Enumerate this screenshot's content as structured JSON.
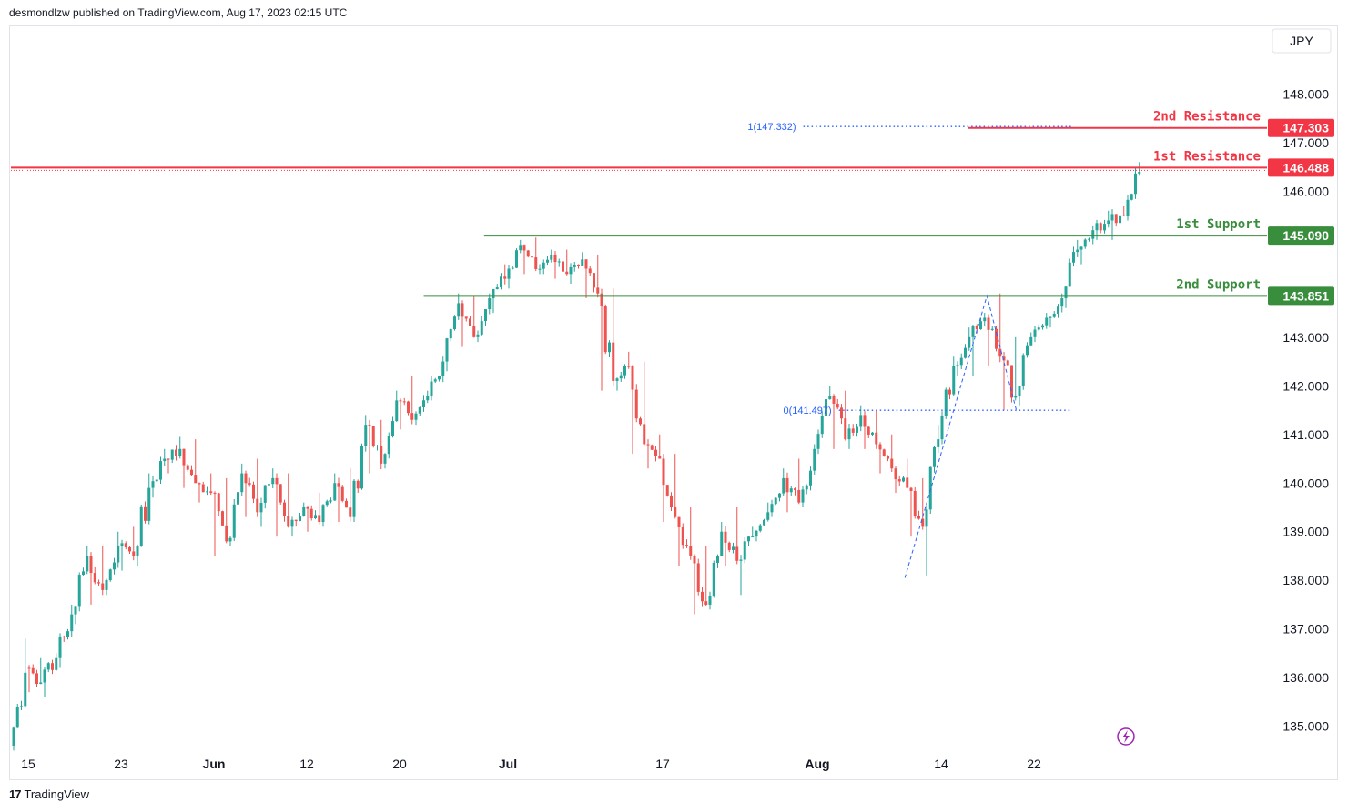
{
  "header": {
    "publisher_line": "desmondlzw published on TradingView.com, Aug 17, 2023 02:15 UTC"
  },
  "footer": {
    "brand": "TradingView",
    "logo_glyph": "17"
  },
  "chart_data": {
    "type": "candlestick",
    "currency": "JPY",
    "ylim": [
      134.6,
      149.0
    ],
    "y_ticks": [
      "135.000",
      "136.000",
      "137.000",
      "138.000",
      "139.000",
      "140.000",
      "141.000",
      "142.000",
      "143.000",
      "146.000",
      "147.000",
      "148.000"
    ],
    "x_ticks": [
      {
        "label": "15",
        "index": 0
      },
      {
        "label": "23",
        "index": 6
      },
      {
        "label": "Jun",
        "index": 12
      },
      {
        "label": "12",
        "index": 18
      },
      {
        "label": "20",
        "index": 24
      },
      {
        "label": "Jul",
        "index": 31
      },
      {
        "label": "17",
        "index": 41
      },
      {
        "label": "Aug",
        "index": 51
      },
      {
        "label": "14",
        "index": 59
      },
      {
        "label": "22",
        "index": 65
      }
    ],
    "colors": {
      "up": "#26a69a",
      "down": "#ef5350",
      "resistance": "#f23645",
      "support": "#388e3c",
      "fib": "#2962ff"
    },
    "levels": [
      {
        "name": "2nd Resistance",
        "value": 147.303,
        "label": "147.303",
        "color": "#f23645",
        "start_index": 61.7
      },
      {
        "name": "1st Resistance",
        "value": 146.488,
        "label": "146.488",
        "color": "#f23645",
        "start_index": 0
      },
      {
        "name": "1st Support",
        "value": 145.09,
        "label": "145.090",
        "color": "#388e3c",
        "start_index": 30.4
      },
      {
        "name": "2nd Support",
        "value": 143.851,
        "label": "143.851",
        "color": "#388e3c",
        "start_index": 26.5
      }
    ],
    "fib": [
      {
        "label": "1(147.332)",
        "value": 147.332,
        "start_index": 50.8,
        "end_index": 68.2
      },
      {
        "label": "0(141.497)",
        "value": 141.497,
        "start_index": 53.1,
        "end_index": 68.2
      }
    ],
    "daily": [
      [
        134.6,
        134.5,
        136.8,
        136.1
      ],
      [
        136.2,
        135.7,
        136.4,
        135.9
      ],
      [
        135.9,
        135.6,
        136.5,
        136.4
      ],
      [
        136.4,
        136.2,
        137.5,
        137.3
      ],
      [
        137.3,
        137.1,
        138.7,
        138.5
      ],
      [
        138.5,
        137.5,
        138.7,
        137.8
      ],
      [
        137.8,
        137.7,
        139.0,
        138.7
      ],
      [
        138.7,
        138.2,
        139.1,
        138.5
      ],
      [
        138.5,
        138.3,
        140.2,
        139.9
      ],
      [
        139.9,
        139.7,
        140.7,
        140.5
      ],
      [
        140.5,
        140.2,
        140.95,
        140.7
      ],
      [
        140.7,
        139.9,
        140.9,
        140.0
      ],
      [
        140.0,
        139.6,
        140.2,
        139.8
      ],
      [
        139.8,
        138.5,
        140.1,
        138.8
      ],
      [
        138.8,
        138.7,
        140.4,
        140.2
      ],
      [
        140.2,
        139.3,
        140.5,
        139.4
      ],
      [
        139.4,
        139.1,
        140.3,
        140.1
      ],
      [
        140.1,
        138.9,
        140.2,
        139.1
      ],
      [
        139.1,
        138.9,
        139.6,
        139.5
      ],
      [
        139.5,
        139.0,
        139.8,
        139.2
      ],
      [
        139.2,
        139.1,
        140.2,
        140.0
      ],
      [
        140.0,
        139.2,
        140.3,
        139.3
      ],
      [
        139.3,
        139.2,
        141.4,
        141.2
      ],
      [
        141.2,
        140.2,
        141.3,
        140.4
      ],
      [
        140.4,
        140.3,
        141.9,
        141.7
      ],
      [
        141.7,
        141.1,
        142.2,
        141.3
      ],
      [
        141.3,
        141.2,
        141.9,
        141.8
      ],
      [
        141.8,
        141.7,
        142.6,
        142.5
      ],
      [
        142.5,
        142.3,
        143.9,
        143.7
      ],
      [
        143.7,
        142.8,
        143.85,
        143.0
      ],
      [
        143.0,
        142.9,
        143.9,
        143.8
      ],
      [
        143.8,
        143.5,
        144.5,
        144.2
      ],
      [
        144.2,
        144.0,
        145.0,
        144.9
      ],
      [
        144.9,
        144.3,
        145.05,
        144.4
      ],
      [
        144.4,
        144.3,
        144.8,
        144.7
      ],
      [
        144.7,
        144.2,
        144.8,
        144.3
      ],
      [
        144.3,
        144.1,
        144.75,
        144.6
      ],
      [
        144.6,
        143.8,
        144.7,
        143.9
      ],
      [
        143.9,
        141.9,
        144.0,
        142.1
      ],
      [
        142.1,
        141.9,
        142.7,
        142.4
      ],
      [
        142.4,
        140.6,
        142.5,
        140.8
      ],
      [
        140.8,
        140.3,
        141.0,
        140.5
      ],
      [
        140.5,
        139.2,
        140.6,
        139.3
      ],
      [
        139.3,
        138.3,
        139.5,
        138.5
      ],
      [
        138.5,
        137.3,
        138.7,
        137.5
      ],
      [
        137.5,
        137.4,
        139.2,
        139.0
      ],
      [
        139.0,
        138.3,
        139.5,
        138.4
      ],
      [
        138.4,
        137.7,
        139.1,
        138.9
      ],
      [
        138.9,
        138.8,
        139.6,
        139.4
      ],
      [
        139.4,
        139.3,
        140.3,
        140.1
      ],
      [
        140.1,
        139.4,
        140.5,
        139.6
      ],
      [
        139.6,
        139.5,
        140.8,
        140.7
      ],
      [
        140.7,
        140.6,
        142.0,
        141.8
      ],
      [
        141.8,
        140.7,
        141.9,
        140.9
      ],
      [
        140.9,
        140.7,
        141.6,
        141.4
      ],
      [
        141.4,
        140.7,
        141.5,
        140.8
      ],
      [
        140.8,
        140.2,
        141.0,
        140.3
      ],
      [
        140.3,
        139.8,
        140.5,
        139.9
      ],
      [
        139.9,
        138.9,
        140.1,
        139.1
      ],
      [
        139.1,
        138.1,
        141.2,
        140.9
      ],
      [
        140.9,
        140.8,
        142.6,
        142.4
      ],
      [
        142.4,
        142.2,
        143.2,
        143.0
      ],
      [
        143.0,
        142.2,
        143.5,
        143.4
      ],
      [
        143.4,
        142.4,
        143.9,
        142.6
      ],
      [
        142.6,
        141.5,
        143.0,
        141.8
      ],
      [
        141.8,
        141.6,
        143.1,
        143.0
      ],
      [
        143.0,
        142.9,
        143.5,
        143.4
      ],
      [
        143.4,
        143.2,
        143.9,
        143.8
      ],
      [
        143.8,
        143.6,
        145.0,
        144.8
      ],
      [
        144.8,
        144.5,
        145.3,
        145.2
      ],
      [
        145.2,
        145.0,
        145.6,
        145.4
      ],
      [
        145.4,
        145.0,
        145.7,
        145.5
      ],
      [
        145.5,
        145.4,
        146.6,
        146.4
      ]
    ]
  }
}
